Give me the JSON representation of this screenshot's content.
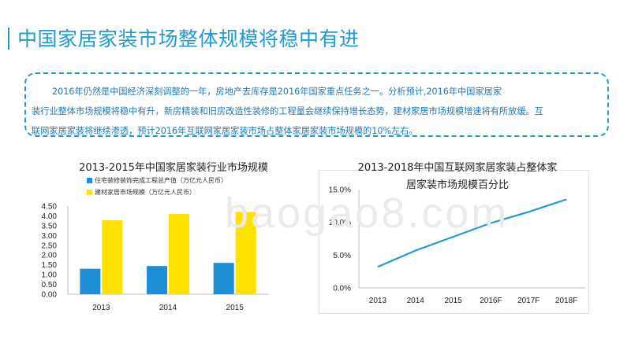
{
  "header": {
    "title": "中国家居家装市场整体规模将稳中有进"
  },
  "summary": {
    "lines": [
      "2016年仍然是中国经济深刻调整的一年，房地产去库存是2016年国家重点任务之一。分析预计,2016年中国家居家",
      "装行业整体市场规模将稳中有升，新房精装和旧房改造性装修的工程量会继续保持增长态势，建材家居市场规模增速将有所放缓。互",
      "联网家居家装将继续渗透，预计2016年互联网家居家装市场占整体家居家装市场规模的10%左右。"
    ]
  },
  "watermark": "baogao8.com",
  "colors": {
    "accent": "#1f9bd1",
    "series1": "#1e8fd6",
    "series2": "#ffe100",
    "line": "#1f9bd1"
  },
  "chart_data": [
    {
      "type": "bar",
      "title": "2013-2015年中国家居家装行业市场规模",
      "categories": [
        "2013",
        "2014",
        "2015"
      ],
      "series": [
        {
          "name": "住宅装修装饰完成工程总产值（万亿元人民币）",
          "values": [
            1.3,
            1.44,
            1.6
          ]
        },
        {
          "name": "建材家居市场规模（万亿元人民币）",
          "values": [
            3.78,
            4.1,
            4.2
          ]
        }
      ],
      "ylim": [
        0,
        4.5
      ],
      "yticks": [
        "0.00",
        "0.50",
        "1.00",
        "1.50",
        "2.00",
        "2.50",
        "3.00",
        "3.50",
        "4.00",
        "4.50"
      ]
    },
    {
      "type": "line",
      "title": "2013-2018年中国互联网家居家装占整体家居家装市场规模百分比",
      "title_lines": [
        "2013-2018年中国互联网家居家装占整体家",
        "居家装市场规模百分比"
      ],
      "categories": [
        "2013",
        "2014",
        "2015",
        "2016F",
        "2017F",
        "2018F"
      ],
      "series": [
        {
          "values": [
            3.2,
            5.7,
            7.8,
            9.9,
            11.6,
            13.5
          ]
        }
      ],
      "ylim": [
        0,
        15
      ],
      "yticks": [
        "0.0%",
        "5.0%",
        "10.0%",
        "15.0%"
      ]
    }
  ]
}
